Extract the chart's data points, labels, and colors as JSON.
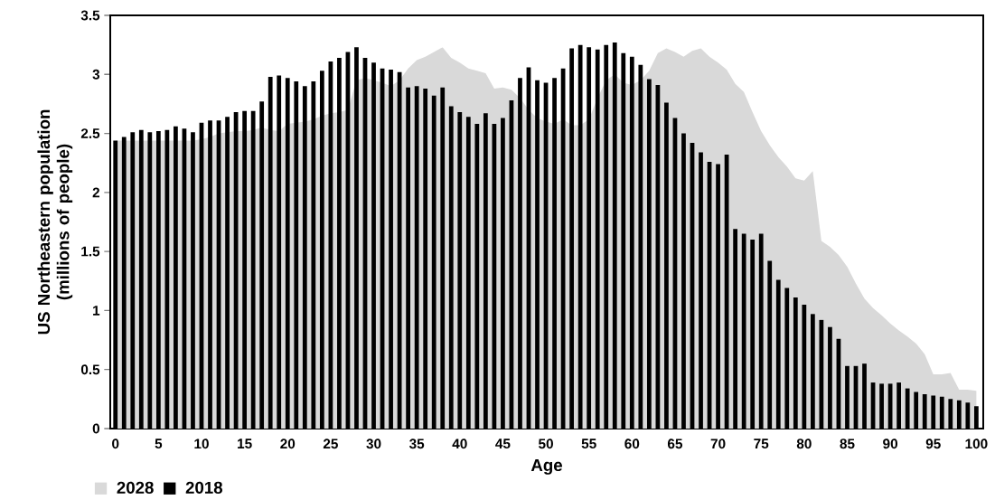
{
  "chart_data": {
    "type": "bar",
    "xlabel": "Age",
    "ylabel": "US Northeastern population (millions of people)",
    "x": [
      0,
      1,
      2,
      3,
      4,
      5,
      6,
      7,
      8,
      9,
      10,
      11,
      12,
      13,
      14,
      15,
      16,
      17,
      18,
      19,
      20,
      21,
      22,
      23,
      24,
      25,
      26,
      27,
      28,
      29,
      30,
      31,
      32,
      33,
      34,
      35,
      36,
      37,
      38,
      39,
      40,
      41,
      42,
      43,
      44,
      45,
      46,
      47,
      48,
      49,
      50,
      51,
      52,
      53,
      54,
      55,
      56,
      57,
      58,
      59,
      60,
      61,
      62,
      63,
      64,
      65,
      66,
      67,
      68,
      69,
      70,
      71,
      72,
      73,
      74,
      75,
      76,
      77,
      78,
      79,
      80,
      81,
      82,
      83,
      84,
      85,
      86,
      87,
      88,
      89,
      90,
      91,
      92,
      93,
      94,
      95,
      96,
      97,
      98,
      99,
      100
    ],
    "xlim": [
      -0.6,
      100.8
    ],
    "xticks": [
      0,
      5,
      10,
      15,
      20,
      25,
      30,
      35,
      40,
      45,
      50,
      55,
      60,
      65,
      70,
      75,
      80,
      85,
      90,
      95,
      100
    ],
    "ylim": [
      0,
      3.5
    ],
    "yticks": [
      0,
      0.5,
      1,
      1.5,
      2,
      2.5,
      3,
      3.5
    ],
    "legend": "bottom left",
    "series": [
      {
        "name": "2028",
        "type": "area",
        "color": "#d9d9d9",
        "values": [
          2.44,
          2.44,
          2.44,
          2.44,
          2.44,
          2.44,
          2.44,
          2.44,
          2.44,
          2.44,
          2.45,
          2.47,
          2.5,
          2.51,
          2.52,
          2.52,
          2.53,
          2.55,
          2.53,
          2.52,
          2.58,
          2.59,
          2.6,
          2.62,
          2.65,
          2.67,
          2.68,
          2.7,
          2.95,
          2.97,
          2.95,
          2.93,
          2.9,
          2.95,
          3.05,
          3.12,
          3.15,
          3.19,
          3.23,
          3.14,
          3.1,
          3.05,
          3.03,
          3.01,
          2.88,
          2.89,
          2.87,
          2.8,
          2.7,
          2.63,
          2.6,
          2.58,
          2.62,
          2.57,
          2.57,
          2.62,
          2.8,
          2.95,
          3.0,
          2.93,
          2.91,
          2.95,
          3.03,
          3.18,
          3.22,
          3.19,
          3.15,
          3.2,
          3.22,
          3.15,
          3.1,
          3.04,
          2.92,
          2.85,
          2.68,
          2.52,
          2.4,
          2.3,
          2.22,
          2.12,
          2.1,
          2.18,
          1.59,
          1.54,
          1.47,
          1.37,
          1.23,
          1.1,
          1.02,
          0.96,
          0.89,
          0.83,
          0.78,
          0.72,
          0.63,
          0.46,
          0.46,
          0.47,
          0.33,
          0.33,
          0.32
        ]
      },
      {
        "name": "2018",
        "color": "#000000",
        "values": [
          2.44,
          2.47,
          2.51,
          2.53,
          2.51,
          2.52,
          2.53,
          2.56,
          2.54,
          2.51,
          2.59,
          2.61,
          2.61,
          2.64,
          2.68,
          2.69,
          2.69,
          2.77,
          2.98,
          2.99,
          2.97,
          2.94,
          2.9,
          2.94,
          3.03,
          3.11,
          3.14,
          3.19,
          3.23,
          3.14,
          3.1,
          3.05,
          3.04,
          3.02,
          2.89,
          2.9,
          2.88,
          2.82,
          2.89,
          2.73,
          2.68,
          2.64,
          2.58,
          2.67,
          2.58,
          2.63,
          2.78,
          2.97,
          3.06,
          2.95,
          2.93,
          2.97,
          3.05,
          3.22,
          3.25,
          3.23,
          3.21,
          3.25,
          3.27,
          3.18,
          3.15,
          3.08,
          2.96,
          2.91,
          2.76,
          2.63,
          2.5,
          2.42,
          2.34,
          2.26,
          2.24,
          2.32,
          1.69,
          1.65,
          1.6,
          1.65,
          1.42,
          1.26,
          1.19,
          1.11,
          1.05,
          0.97,
          0.92,
          0.86,
          0.76,
          0.53,
          0.53,
          0.55,
          0.39,
          0.38,
          0.38,
          0.39,
          0.34,
          0.31,
          0.29,
          0.28,
          0.27,
          0.25,
          0.24,
          0.22,
          0.19
        ]
      }
    ]
  }
}
